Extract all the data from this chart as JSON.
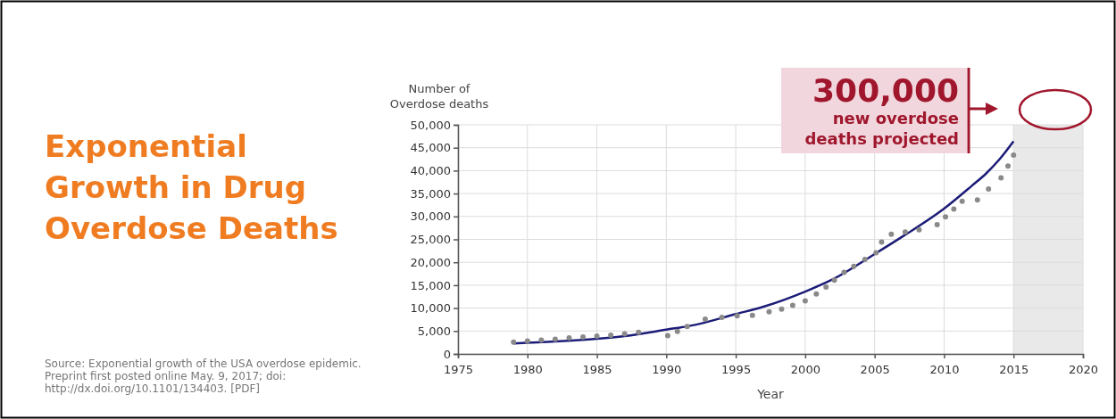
{
  "chart_data": {
    "type": "scatter",
    "title": "Exponential Growth in Drug Overdose Deaths",
    "xlabel": "Year",
    "ylabel": "Number of Overdose deaths",
    "annotations": [
      "300,000",
      "new overdose deaths projected",
      "Source: Exponential growth of the USA overdose epidemic. Preprint first posted online May. 9, 2017; doi: http://dx.doi.org/10.1101/134403. [PDF]"
    ],
    "xlim": [
      1975,
      2020
    ],
    "xticks": [
      1975,
      1980,
      1985,
      1990,
      1995,
      2000,
      2005,
      2010,
      2015,
      2020
    ],
    "ylim": [
      0,
      50000
    ],
    "yticks": [
      {
        "value": 0,
        "label": "0"
      },
      {
        "value": 5000,
        "label": "5,000"
      },
      {
        "value": 10000,
        "label": "10,000"
      },
      {
        "value": 15000,
        "label": "15,000"
      },
      {
        "value": 20000,
        "label": "20,000"
      },
      {
        "value": 25000,
        "label": "25,000"
      },
      {
        "value": 30000,
        "label": "30,000"
      },
      {
        "value": 35000,
        "label": "35,000"
      },
      {
        "value": 40000,
        "label": "40,000"
      },
      {
        "value": 45000,
        "label": "45,000"
      },
      {
        "value": 50000,
        "label": "50,000"
      }
    ],
    "grid": true,
    "bands": [
      {
        "axis": "x",
        "from": 2015,
        "to": 2020,
        "color": "#e9e9e9"
      }
    ],
    "series": [
      {
        "color": "#8a8a8a",
        "marker": "circle",
        "x": [
          1979,
          1980,
          1981,
          1982,
          1983,
          1984,
          1985,
          1986,
          1987,
          1988,
          1990.1,
          1990.8,
          1991.5,
          1992.8,
          1994,
          1995.1,
          1996.2,
          1997.4,
          1998.3,
          1999.1,
          2000,
          2000.8,
          2001.5,
          2002.1,
          2002.8,
          2003.5,
          2004.3,
          2005.1,
          2005.5,
          2006.2,
          2007.2,
          2008.2,
          2009.5,
          2010.1,
          2010.7,
          2011.3,
          2012.4,
          2013.2,
          2014.1,
          2014.6,
          2015
        ],
        "values": [
          2600,
          2800,
          3000,
          3200,
          3500,
          3700,
          3900,
          4100,
          4400,
          4700,
          4000,
          4900,
          6000,
          7600,
          8000,
          8300,
          8400,
          9200,
          9800,
          10600,
          11600,
          13100,
          14600,
          16100,
          17800,
          19100,
          20600,
          22100,
          24400,
          26100,
          26600,
          27100,
          28200,
          29900,
          31600,
          33300,
          33600,
          36000,
          38400,
          41000,
          43400
        ]
      },
      {
        "type": "line",
        "color": "#1c1c78",
        "marker": "none",
        "line_style": "solid",
        "x": [
          1979,
          1982,
          1985,
          1987,
          1990,
          1992,
          1995,
          1997,
          2000,
          2002,
          2005,
          2007,
          2010,
          2012,
          2013,
          2014,
          2015
        ],
        "values": [
          2300,
          2700,
          3300,
          3900,
          5300,
          6300,
          8700,
          10300,
          13600,
          16300,
          21800,
          25600,
          31700,
          36700,
          39300,
          42500,
          46400
        ]
      }
    ]
  }
}
